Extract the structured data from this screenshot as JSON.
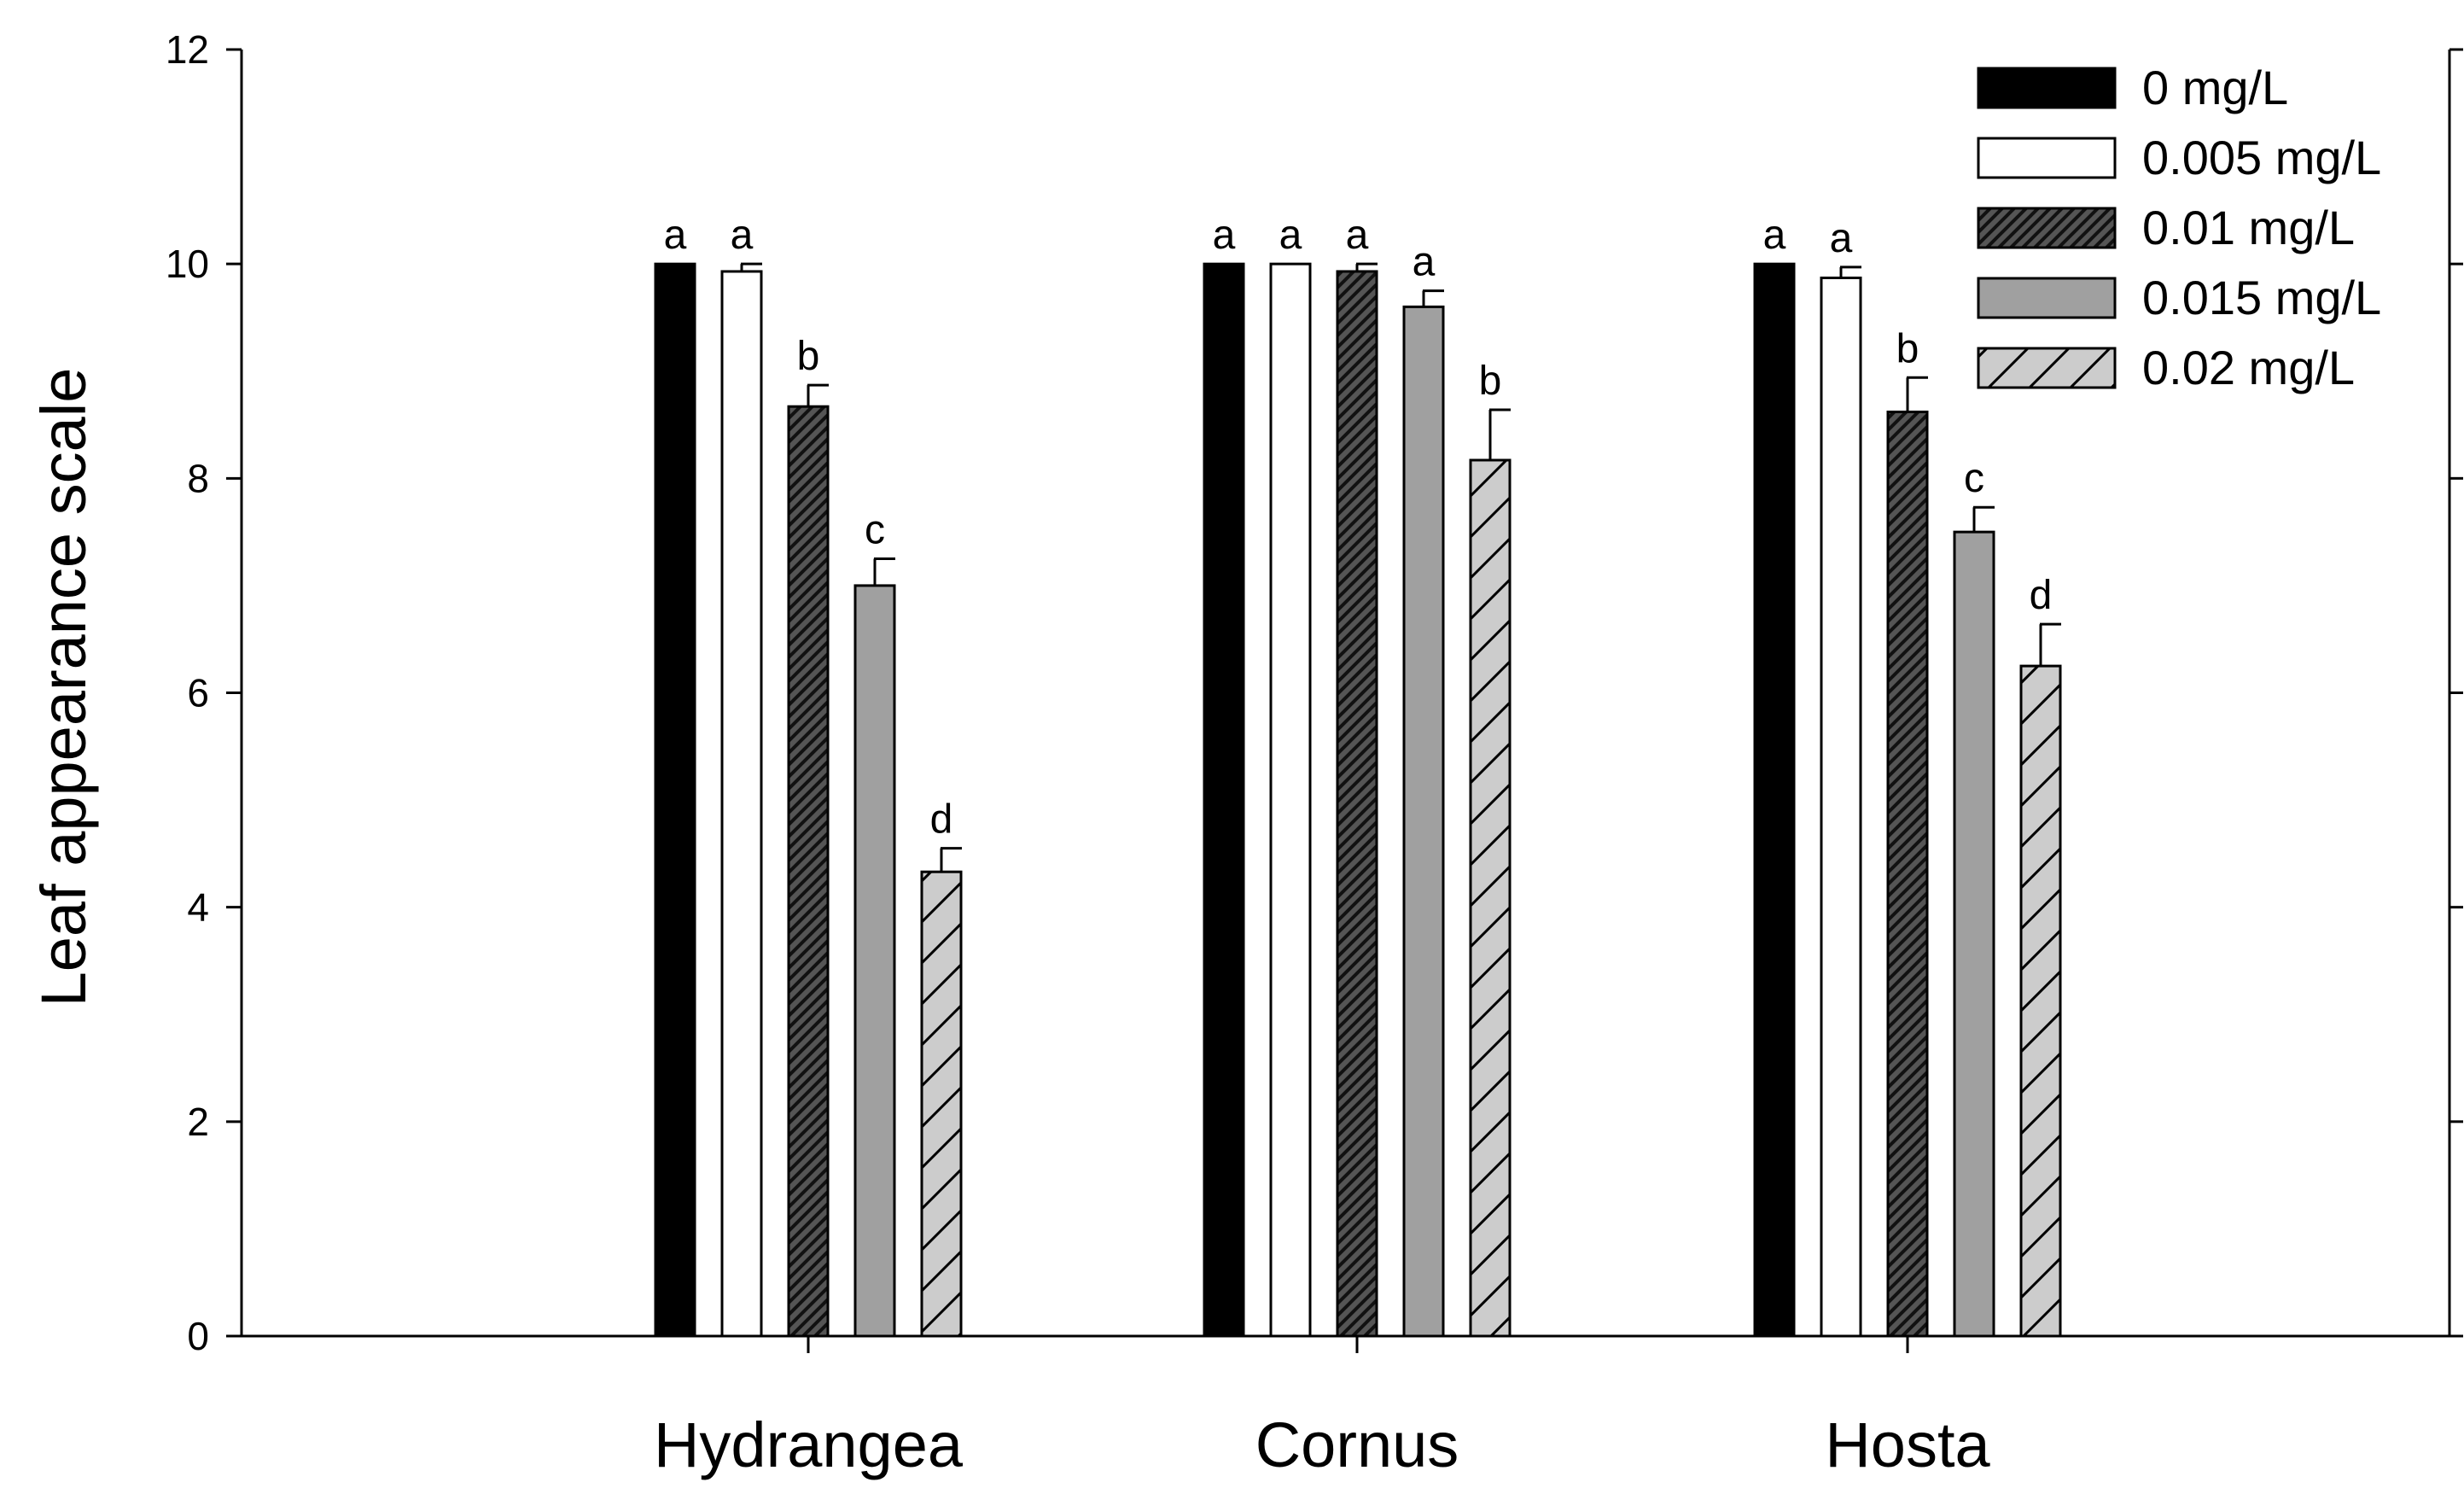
{
  "chart_data": {
    "type": "bar",
    "title": "",
    "xlabel": "",
    "ylabel": "Leaf appearance scale",
    "ylim": [
      0,
      12
    ],
    "yticks": [
      "0",
      "2",
      "4",
      "6",
      "8",
      "10",
      "12"
    ],
    "categories": [
      "Hydrangea",
      "Cornus",
      "Hosta"
    ],
    "legend_position": "top-right",
    "series": [
      {
        "name": "0 mg/L",
        "fill": "#000000",
        "pattern": "solid",
        "values": [
          10.0,
          10.0,
          10.0
        ],
        "errors": [
          0,
          0,
          0
        ],
        "letters": [
          "a",
          "a",
          "a"
        ]
      },
      {
        "name": "0.005 mg/L",
        "fill": "#ffffff",
        "pattern": "solid",
        "values": [
          9.93,
          10.0,
          9.87
        ],
        "errors": [
          0.07,
          0,
          0.1
        ],
        "letters": [
          "a",
          "a",
          "a"
        ]
      },
      {
        "name": "0.01 mg/L",
        "fill": "#555555",
        "pattern": "dense-hatch",
        "values": [
          8.67,
          9.93,
          8.62
        ],
        "errors": [
          0.2,
          0.07,
          0.32
        ],
        "letters": [
          "b",
          "a",
          "b"
        ]
      },
      {
        "name": "0.015 mg/L",
        "fill": "#a0a0a0",
        "pattern": "solid",
        "values": [
          7.0,
          9.6,
          7.5
        ],
        "errors": [
          0.25,
          0.15,
          0.23
        ],
        "letters": [
          "c",
          "a",
          "c"
        ]
      },
      {
        "name": "0.02 mg/L",
        "fill": "#cccccc",
        "pattern": "sparse-hatch",
        "values": [
          4.33,
          8.17,
          6.25
        ],
        "errors": [
          0.22,
          0.47,
          0.39
        ],
        "letters": [
          "d",
          "b",
          "d"
        ]
      }
    ]
  }
}
